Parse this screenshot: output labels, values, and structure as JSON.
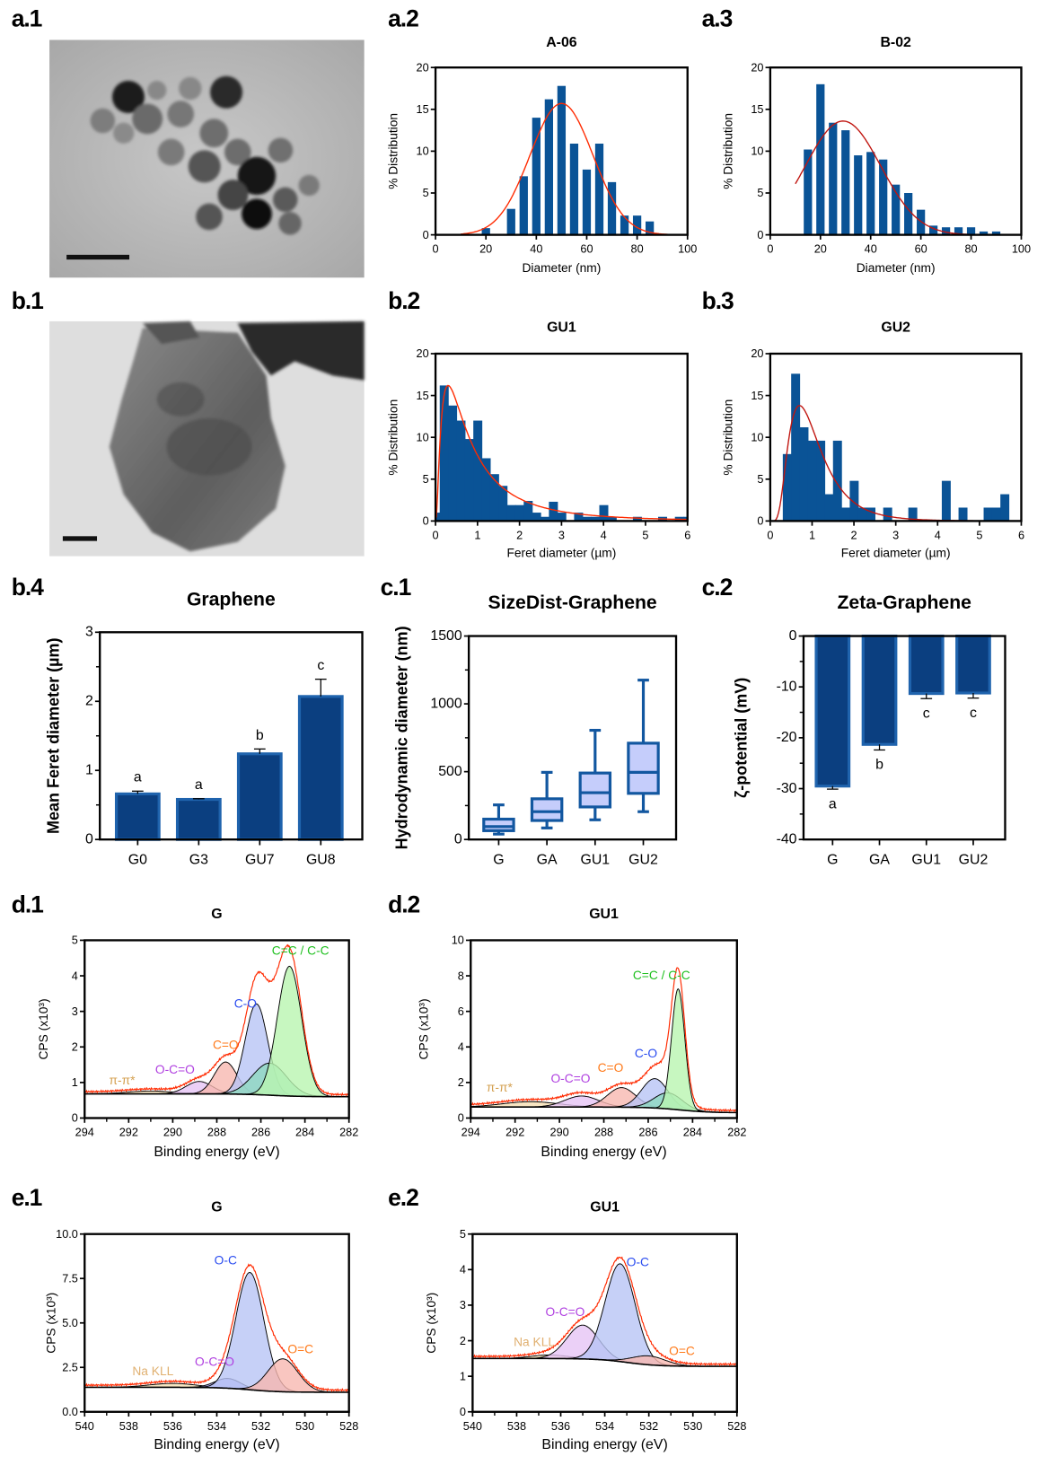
{
  "panel_labels": [
    "a.1",
    "a.2",
    "a.3",
    "b.1",
    "b.2",
    "b.3",
    "b.4",
    "c.1",
    "c.2",
    "d.1",
    "d.2",
    "e.1",
    "e.2"
  ],
  "colors": {
    "bar": "#0a5396",
    "bar_dark": "#0b3f80",
    "fit": "#ff2a00",
    "box_fill": "#c5cdfb",
    "box_stroke": "#1257a0",
    "envelope": "#ff2a00"
  },
  "images": [
    {
      "panel": "a.1",
      "kind": "TEM micrograph of nanoparticle cluster",
      "scale_bar": true
    },
    {
      "panel": "b.1",
      "kind": "TEM micrograph of graphene flake",
      "scale_bar": true
    }
  ],
  "chart_data": [
    {
      "panel": "a.2",
      "type": "bar",
      "subtype": "histogram",
      "title": "A-06",
      "xlabel": "Diameter (nm)",
      "ylabel": "% Distribution",
      "xlim": [
        0,
        100
      ],
      "ylim": [
        0,
        20
      ],
      "xticks": [
        0,
        20,
        40,
        60,
        80,
        100
      ],
      "yticks": [
        0,
        5,
        10,
        15,
        20
      ],
      "bin_width": 3.3,
      "x": [
        20,
        30,
        35,
        40,
        45,
        50,
        55,
        60,
        65,
        70,
        75,
        80,
        85
      ],
      "values": [
        0.8,
        3.1,
        7,
        14,
        16.2,
        17.8,
        10.9,
        7.8,
        10.9,
        6.3,
        2.3,
        2.3,
        1.6
      ],
      "fit": {
        "type": "gaussian",
        "mean": 50,
        "sd": 12.5,
        "peak": 15.7,
        "from": 10,
        "to": 100,
        "color": "#ff2a00"
      }
    },
    {
      "panel": "a.3",
      "type": "bar",
      "subtype": "histogram",
      "title": "B-02",
      "xlabel": "Diameter (nm)",
      "ylabel": "% Distribution",
      "xlim": [
        0,
        100
      ],
      "ylim": [
        0,
        20
      ],
      "xticks": [
        0,
        20,
        40,
        60,
        80,
        100
      ],
      "yticks": [
        0,
        5,
        10,
        15,
        20
      ],
      "bin_width": 3.3,
      "x": [
        15,
        20,
        25,
        30,
        35,
        40,
        45,
        50,
        55,
        60,
        65,
        70,
        75,
        80,
        85,
        90
      ],
      "values": [
        10.2,
        18,
        13.4,
        12.5,
        9.5,
        9.9,
        9,
        6,
        5,
        3,
        1.1,
        0.9,
        0.9,
        0.9,
        0.4,
        0.4
      ],
      "fit": {
        "type": "gaussian",
        "mean": 29,
        "sd": 15,
        "peak": 13.6,
        "from": 10,
        "to": 100,
        "color": "#c0150f"
      }
    },
    {
      "panel": "b.2",
      "type": "bar",
      "subtype": "histogram",
      "title": "GU1",
      "xlabel": "Feret diameter (µm)",
      "ylabel": "% Distribution",
      "xlim": [
        0,
        6
      ],
      "ylim": [
        0,
        20
      ],
      "xticks": [
        0,
        1,
        2,
        3,
        4,
        5,
        6
      ],
      "yticks": [
        0,
        5,
        10,
        15,
        20
      ],
      "bin_width": 0.2,
      "x": [
        0,
        0.2,
        0.4,
        0.6,
        0.8,
        1.0,
        1.2,
        1.4,
        1.6,
        1.8,
        2.0,
        2.2,
        2.4,
        2.6,
        2.8,
        3.0,
        3.2,
        3.4,
        3.6,
        3.8,
        4.0,
        4.2,
        4.4,
        4.6,
        4.8,
        5.0,
        5.2,
        5.4,
        5.6,
        5.8,
        6.0
      ],
      "values": [
        1,
        16.2,
        13.8,
        12,
        9.8,
        12,
        7.5,
        5.6,
        4.2,
        1.9,
        1.9,
        2.4,
        1,
        0.5,
        2.3,
        1,
        0,
        1,
        0.5,
        0.5,
        1.9,
        0.5,
        0,
        0,
        0.5,
        0,
        0,
        0.5,
        0,
        0.5,
        0.5
      ],
      "fit": {
        "type": "lognormal",
        "mode": 0.3,
        "sigma": 1.0,
        "peak": 16.2,
        "from": 0.02,
        "to": 6,
        "color": "#ff2a00"
      }
    },
    {
      "panel": "b.3",
      "type": "bar",
      "subtype": "histogram",
      "title": "GU2",
      "xlabel": "Feret diameter (µm)",
      "ylabel": "% Distribution",
      "xlim": [
        0,
        6
      ],
      "ylim": [
        0,
        20
      ],
      "xticks": [
        0,
        1,
        2,
        3,
        4,
        5,
        6
      ],
      "yticks": [
        0,
        5,
        10,
        15,
        20
      ],
      "bin_width": 0.2,
      "x": [
        0.4,
        0.6,
        0.8,
        1.0,
        1.2,
        1.4,
        1.6,
        1.8,
        2.0,
        2.2,
        2.4,
        2.6,
        2.8,
        3.0,
        3.2,
        3.4,
        3.6,
        3.8,
        4.0,
        4.2,
        4.4,
        4.6,
        4.8,
        5.0,
        5.2,
        5.4,
        5.6
      ],
      "values": [
        8,
        17.6,
        11.2,
        9.6,
        9.6,
        3.2,
        9.6,
        1.6,
        4.8,
        1.6,
        1.6,
        0,
        1.6,
        0,
        0,
        1.6,
        0,
        0,
        0,
        4.8,
        0,
        1.6,
        0,
        0,
        1.6,
        1.6,
        3.2
      ],
      "fit": {
        "type": "lognormal",
        "mode": 0.7,
        "sigma": 0.55,
        "peak": 13.8,
        "from": 0.05,
        "to": 6,
        "color": "#c0150f"
      }
    },
    {
      "panel": "b.4",
      "type": "bar",
      "title": "Graphene",
      "xlabel": "",
      "ylabel": "Mean Feret diameter (µm)",
      "ylim": [
        0,
        3
      ],
      "yticks": [
        0,
        1,
        2,
        3
      ],
      "categories": [
        "G0",
        "G3",
        "GU7",
        "GU8"
      ],
      "values": [
        0.66,
        0.58,
        1.24,
        2.07
      ],
      "errors": [
        0.04,
        0.01,
        0.07,
        0.25
      ],
      "letters": [
        "a",
        "a",
        "b",
        "c"
      ]
    },
    {
      "panel": "c.1",
      "type": "box",
      "title": "SizeDist-Graphene",
      "xlabel": "",
      "ylabel": "Hydrodynamic diameter (nm)",
      "ylim": [
        0,
        1500
      ],
      "yticks": [
        0,
        500,
        1000,
        1500
      ],
      "categories": [
        "G",
        "GA",
        "GU1",
        "GU2"
      ],
      "boxes": [
        {
          "min": 40,
          "q1": 65,
          "median": 95,
          "q3": 150,
          "max": 255
        },
        {
          "min": 85,
          "q1": 140,
          "median": 205,
          "q3": 300,
          "max": 495
        },
        {
          "min": 145,
          "q1": 240,
          "median": 345,
          "q3": 490,
          "max": 805
        },
        {
          "min": 205,
          "q1": 340,
          "median": 495,
          "q3": 710,
          "max": 1175
        }
      ]
    },
    {
      "panel": "c.2",
      "type": "bar",
      "title": "Zeta-Graphene",
      "xlabel": "",
      "ylabel": "ζ-potential (mV)",
      "ylim": [
        -40,
        0
      ],
      "yticks": [
        -40,
        -30,
        -20,
        -10,
        0
      ],
      "categories": [
        "G",
        "GA",
        "GU1",
        "GU2"
      ],
      "values": [
        -29.5,
        -21.3,
        -11.3,
        -11.2
      ],
      "errors": [
        0.6,
        1.1,
        1.0,
        1.0
      ],
      "letters": [
        "a",
        "b",
        "c",
        "c"
      ]
    },
    {
      "panel": "d.1",
      "type": "line",
      "subtype": "xps",
      "title": "G",
      "xlabel": "Binding energy (eV)",
      "ylabel": "CPS (x10³)",
      "xlim": [
        294,
        282
      ],
      "ylim": [
        0,
        5
      ],
      "xticks": [
        294,
        292,
        290,
        288,
        286,
        284,
        282
      ],
      "yticks": [
        0,
        1,
        2,
        3,
        4,
        5
      ],
      "baseline": {
        "high_be": 0.68,
        "low_be": 0.6,
        "step_center": 285.5
      },
      "components": [
        {
          "center": 291,
          "height": 0.08,
          "fwhm": 2.5,
          "color": "#f5deb3"
        },
        {
          "center": 288.8,
          "height": 0.35,
          "fwhm": 1.4,
          "color": "#e6c4f5"
        },
        {
          "center": 287.6,
          "height": 0.9,
          "fwhm": 1.2,
          "color": "#f7b8b0"
        },
        {
          "center": 286.2,
          "height": 2.55,
          "fwhm": 1.2,
          "color": "#b8c4f5"
        },
        {
          "center": 285.6,
          "height": 0.9,
          "fwhm": 1.8,
          "color": "#8fd9c0"
        },
        {
          "center": 284.7,
          "height": 3.65,
          "fwhm": 1.3,
          "color": "#b9f5b0"
        }
      ],
      "annotations": [
        {
          "text": "π-π*",
          "x": 292.3,
          "y": 0.95,
          "color": "#d4a050"
        },
        {
          "text": "O-C=O",
          "x": 289.9,
          "y": 1.25,
          "color": "#b040e0"
        },
        {
          "text": "C=O",
          "x": 287.6,
          "y": 1.95,
          "color": "#ff7a1a"
        },
        {
          "text": "C-O",
          "x": 286.7,
          "y": 3.1,
          "color": "#2a4cf0"
        },
        {
          "text": "C=C / C-C",
          "x": 284.2,
          "y": 4.6,
          "color": "#20c020"
        }
      ]
    },
    {
      "panel": "d.2",
      "type": "line",
      "subtype": "xps",
      "title": "GU1",
      "xlabel": "Binding energy (eV)",
      "ylabel": "CPS (x10³)",
      "xlim": [
        294,
        282
      ],
      "ylim": [
        0,
        10
      ],
      "xticks": [
        294,
        292,
        290,
        288,
        286,
        284,
        282
      ],
      "yticks": [
        0,
        2,
        4,
        6,
        8,
        10
      ],
      "baseline": {
        "high_be": 0.62,
        "low_be": 0.3,
        "step_center": 284.6
      },
      "components": [
        {
          "center": 291.3,
          "height": 0.3,
          "fwhm": 3,
          "color": "#f5deb3"
        },
        {
          "center": 289,
          "height": 0.62,
          "fwhm": 1.8,
          "color": "#e6c4f5"
        },
        {
          "center": 287.2,
          "height": 1.1,
          "fwhm": 1.5,
          "color": "#f7b8b0"
        },
        {
          "center": 285.7,
          "height": 1.65,
          "fwhm": 1.4,
          "color": "#b8c4f5"
        },
        {
          "center": 285.1,
          "height": 0.9,
          "fwhm": 1.5,
          "color": "#8fd9c0"
        },
        {
          "center": 284.65,
          "height": 6.8,
          "fwhm": 0.7,
          "color": "#b9f5b0"
        }
      ],
      "annotations": [
        {
          "text": "π-π*",
          "x": 292.7,
          "y": 1.5,
          "color": "#d4a050"
        },
        {
          "text": "O-C=O",
          "x": 289.5,
          "y": 2.0,
          "color": "#b040e0"
        },
        {
          "text": "C=O",
          "x": 287.7,
          "y": 2.6,
          "color": "#ff7a1a"
        },
        {
          "text": "C-O",
          "x": 286.1,
          "y": 3.4,
          "color": "#2a4cf0"
        },
        {
          "text": "C=C / C-C",
          "x": 285.4,
          "y": 7.8,
          "color": "#20c020"
        }
      ]
    },
    {
      "panel": "e.1",
      "type": "line",
      "subtype": "xps",
      "title": "G",
      "xlabel": "Binding energy (eV)",
      "ylabel": "CPS (x10³)",
      "xlim": [
        540,
        528
      ],
      "ylim": [
        0,
        10
      ],
      "xticks": [
        540,
        538,
        536,
        534,
        532,
        530,
        528
      ],
      "yticks": [
        "0.0",
        "2.5",
        "5.0",
        "7.5",
        "10.0"
      ],
      "baseline": {
        "high_be": 1.38,
        "low_be": 1.1,
        "step_center": 532.5
      },
      "components": [
        {
          "center": 536,
          "height": 0.22,
          "fwhm": 2.5,
          "color": "#f5deb3"
        },
        {
          "center": 533.5,
          "height": 0.55,
          "fwhm": 1.4,
          "color": "#a9a0f5"
        },
        {
          "center": 532.5,
          "height": 6.6,
          "fwhm": 1.5,
          "color": "#b8c4f5"
        },
        {
          "center": 531,
          "height": 1.85,
          "fwhm": 1.6,
          "color": "#f7b8b0"
        }
      ],
      "annotations": [
        {
          "text": "Na KLL",
          "x": 536.9,
          "y": 2.05,
          "color": "#e0b070"
        },
        {
          "text": "O-C=O",
          "x": 534.1,
          "y": 2.6,
          "color": "#b040e0"
        },
        {
          "text": "O-C",
          "x": 533.6,
          "y": 8.3,
          "color": "#2a4cf0"
        },
        {
          "text": "O=C",
          "x": 530.2,
          "y": 3.3,
          "color": "#ff7a1a"
        }
      ]
    },
    {
      "panel": "e.2",
      "type": "line",
      "subtype": "xps",
      "title": "GU1",
      "xlabel": "Binding energy (eV)",
      "ylabel": "CPS (x10³)",
      "xlim": [
        540,
        528
      ],
      "ylim": [
        0,
        5
      ],
      "xticks": [
        540,
        538,
        536,
        534,
        532,
        530,
        528
      ],
      "yticks": [
        0,
        1,
        2,
        3,
        4,
        5
      ],
      "baseline": {
        "high_be": 1.5,
        "low_be": 1.28,
        "step_center": 533
      },
      "components": [
        {
          "center": 536.5,
          "height": 0.1,
          "fwhm": 2,
          "color": "#f5deb3"
        },
        {
          "center": 535,
          "height": 0.95,
          "fwhm": 1.7,
          "color": "#e6c4f5"
        },
        {
          "center": 533.3,
          "height": 2.75,
          "fwhm": 1.6,
          "color": "#b8c4f5"
        },
        {
          "center": 532,
          "height": 0.25,
          "fwhm": 1.8,
          "color": "#f7b8b0"
        }
      ],
      "annotations": [
        {
          "text": "Na KLL",
          "x": 537.2,
          "y": 1.85,
          "color": "#e0b070"
        },
        {
          "text": "O-C=O",
          "x": 535.8,
          "y": 2.7,
          "color": "#b040e0"
        },
        {
          "text": "O-C",
          "x": 532.5,
          "y": 4.1,
          "color": "#2a4cf0"
        },
        {
          "text": "O=C",
          "x": 530.5,
          "y": 1.6,
          "color": "#ff7a1a"
        }
      ]
    }
  ]
}
